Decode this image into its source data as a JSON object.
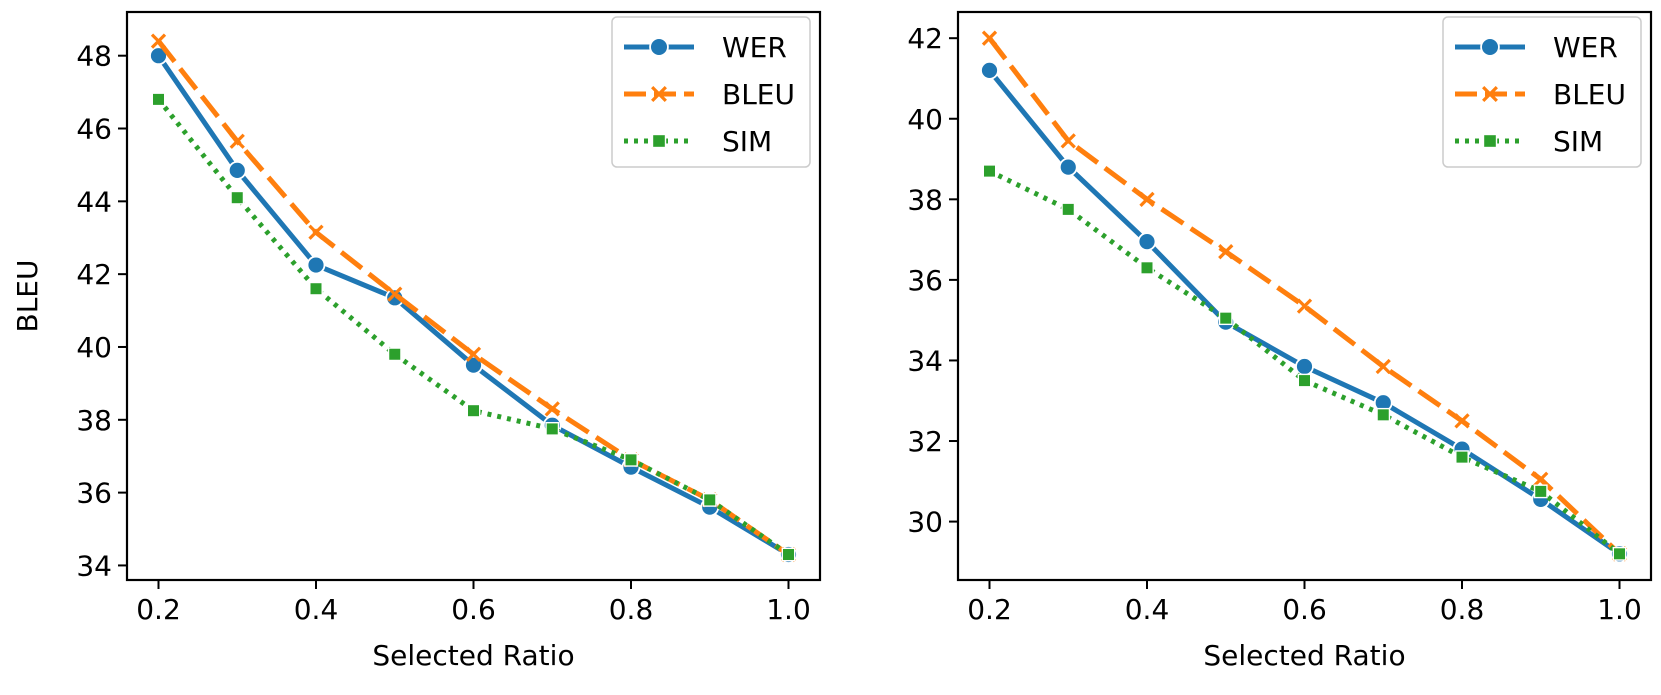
{
  "chart_data": [
    {
      "type": "line",
      "title": "",
      "xlabel": "Selected Ratio",
      "ylabel": "BLEU",
      "xlim": [
        0.16,
        1.04
      ],
      "ylim": [
        33.6,
        49.2
      ],
      "xticks": [
        0.2,
        0.4,
        0.6,
        0.8,
        1.0
      ],
      "xtick_labels": [
        "0.2",
        "0.4",
        "0.6",
        "0.8",
        "1.0"
      ],
      "yticks": [
        34,
        36,
        38,
        40,
        42,
        44,
        46,
        48
      ],
      "ytick_labels": [
        "34",
        "36",
        "38",
        "40",
        "42",
        "44",
        "46",
        "48"
      ],
      "grid": false,
      "legend_position": "top-right",
      "x": [
        0.2,
        0.3,
        0.4,
        0.5,
        0.6,
        0.7,
        0.8,
        0.9,
        1.0
      ],
      "series": [
        {
          "name": "WER",
          "color": "#1f77b4",
          "linestyle": "solid",
          "marker": "circle",
          "values": [
            48.0,
            44.85,
            42.25,
            41.35,
            39.5,
            37.85,
            36.7,
            35.6,
            34.3
          ]
        },
        {
          "name": "BLEU",
          "color": "#ff7f0e",
          "linestyle": "dashed",
          "marker": "x",
          "values": [
            48.4,
            45.65,
            43.15,
            41.45,
            39.8,
            38.3,
            36.9,
            35.8,
            34.3
          ]
        },
        {
          "name": "SIM",
          "color": "#2ca02c",
          "linestyle": "dotted",
          "marker": "square",
          "values": [
            46.8,
            44.1,
            41.6,
            39.8,
            38.25,
            37.75,
            36.9,
            35.8,
            34.3
          ]
        }
      ]
    },
    {
      "type": "line",
      "title": "",
      "xlabel": "Selected Ratio",
      "ylabel": "",
      "xlim": [
        0.16,
        1.04
      ],
      "ylim": [
        28.55,
        42.65
      ],
      "xticks": [
        0.2,
        0.4,
        0.6,
        0.8,
        1.0
      ],
      "xtick_labels": [
        "0.2",
        "0.4",
        "0.6",
        "0.8",
        "1.0"
      ],
      "yticks": [
        30,
        32,
        34,
        36,
        38,
        40,
        42
      ],
      "ytick_labels": [
        "30",
        "32",
        "34",
        "36",
        "38",
        "40",
        "42"
      ],
      "grid": false,
      "legend_position": "top-right",
      "x": [
        0.2,
        0.3,
        0.4,
        0.5,
        0.6,
        0.7,
        0.8,
        0.9,
        1.0
      ],
      "series": [
        {
          "name": "WER",
          "color": "#1f77b4",
          "linestyle": "solid",
          "marker": "circle",
          "values": [
            41.2,
            38.8,
            36.95,
            34.95,
            33.85,
            32.95,
            31.8,
            30.55,
            29.2
          ]
        },
        {
          "name": "BLEU",
          "color": "#ff7f0e",
          "linestyle": "dashed",
          "marker": "x",
          "values": [
            42.0,
            39.45,
            38.0,
            36.7,
            35.35,
            33.85,
            32.5,
            31.05,
            29.2
          ]
        },
        {
          "name": "SIM",
          "color": "#2ca02c",
          "linestyle": "dotted",
          "marker": "square",
          "values": [
            38.7,
            37.75,
            36.3,
            35.05,
            33.5,
            32.65,
            31.6,
            30.75,
            29.2
          ]
        }
      ]
    }
  ]
}
